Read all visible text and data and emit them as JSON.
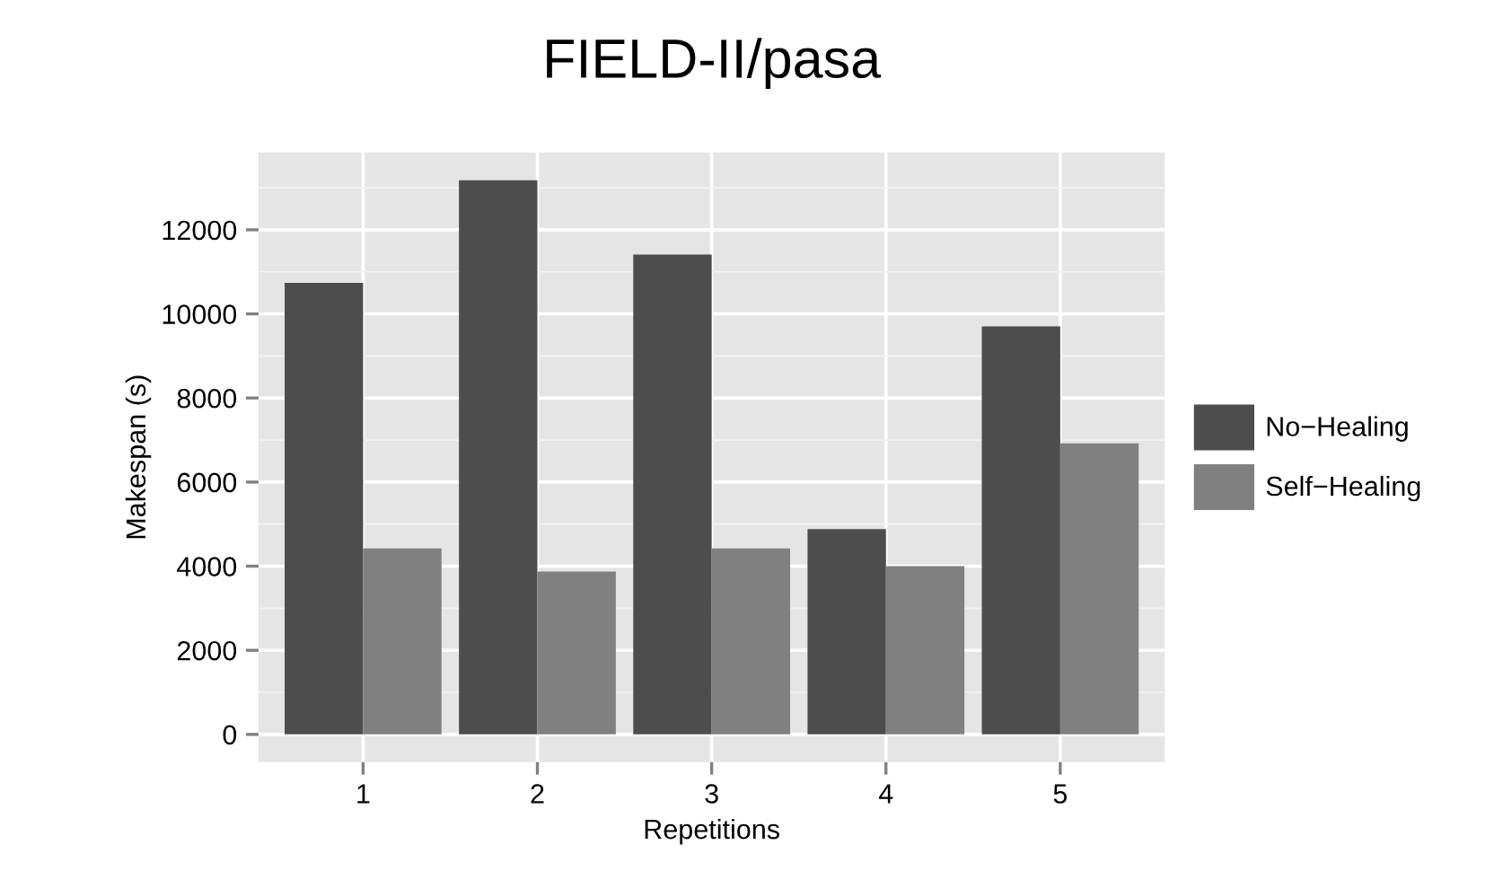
{
  "chart_data": {
    "type": "bar",
    "title": "FIELD-II/pasa",
    "xlabel": "Repetitions",
    "ylabel": "Makespan (s)",
    "categories": [
      "1",
      "2",
      "3",
      "4",
      "5"
    ],
    "series": [
      {
        "name": "No−Healing",
        "color": "#4d4d4d",
        "values": [
          10740,
          13180,
          11410,
          4880,
          9700
        ]
      },
      {
        "name": "Self−Healing",
        "color": "#808080",
        "values": [
          4420,
          3870,
          4420,
          4000,
          6920
        ]
      }
    ],
    "ylim": [
      -660,
      13840
    ],
    "yticks": [
      0,
      2000,
      4000,
      6000,
      8000,
      10000,
      12000
    ],
    "grid": true,
    "legend": "right"
  }
}
